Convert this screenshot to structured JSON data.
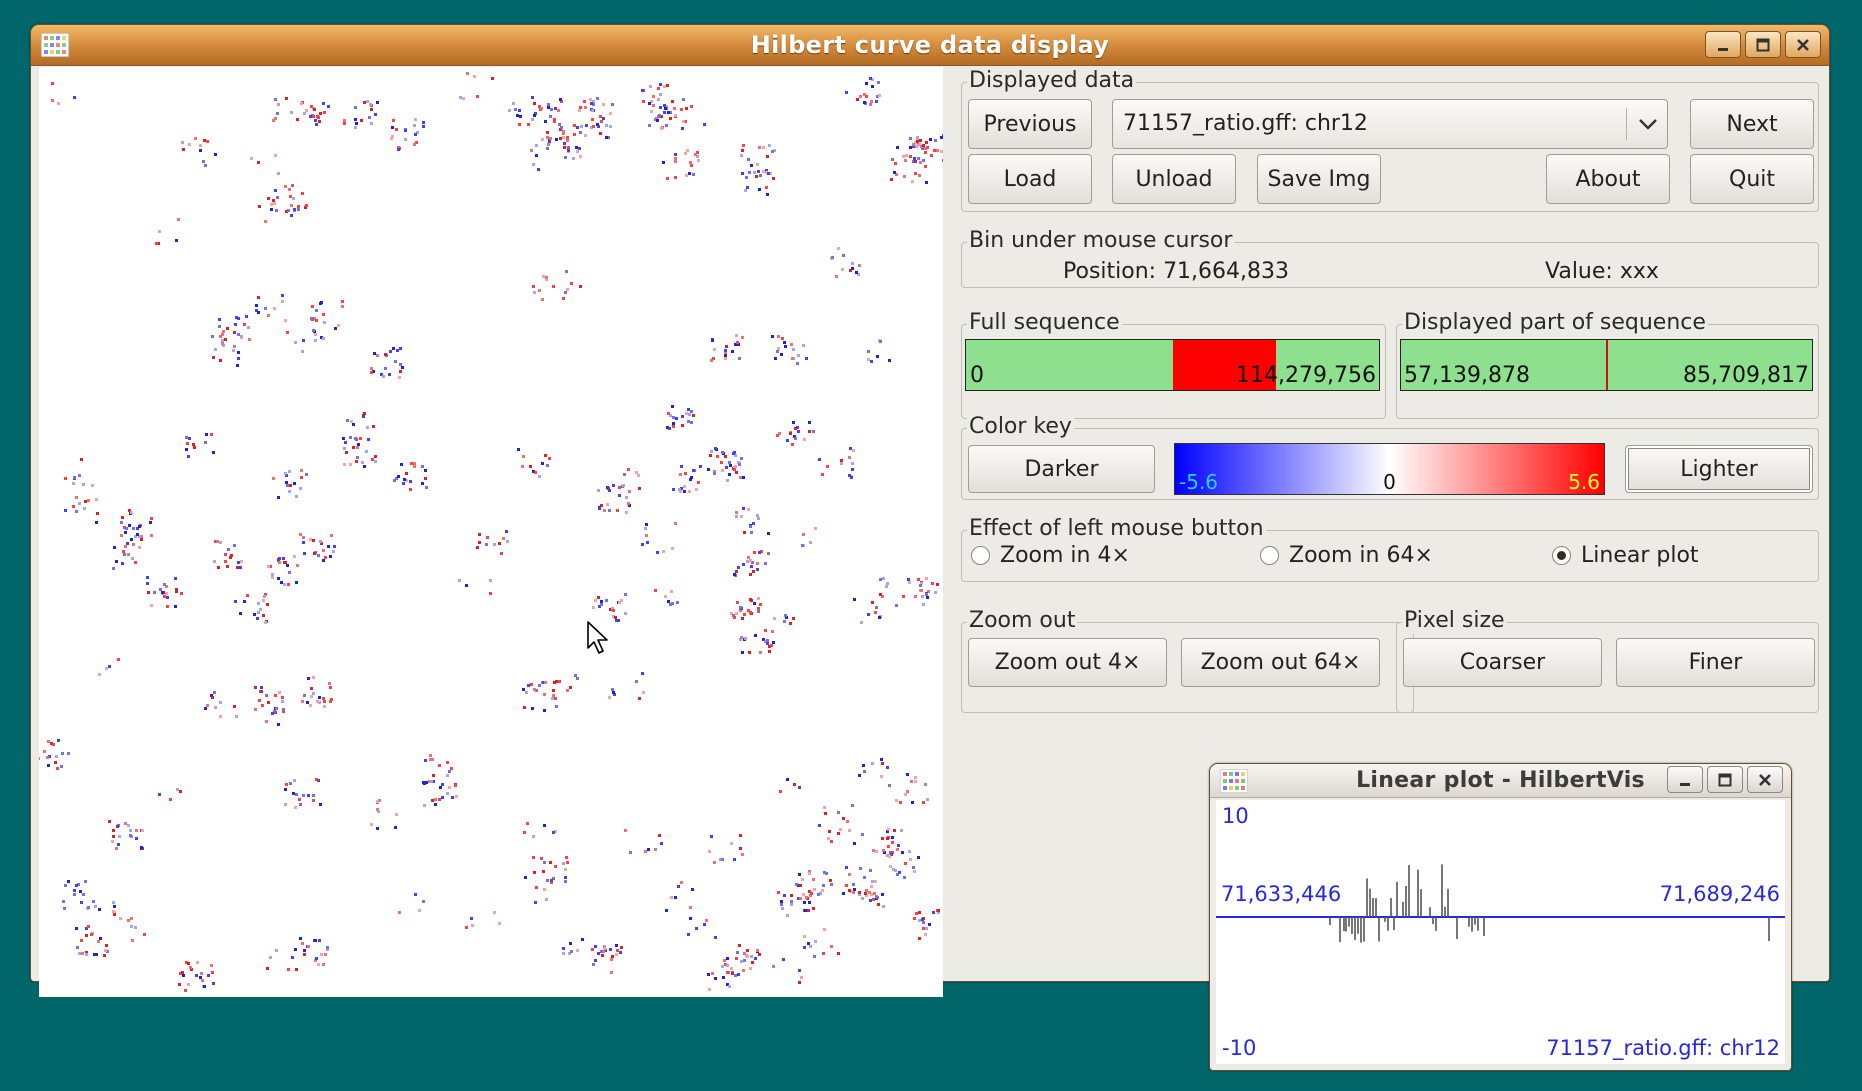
{
  "main_window": {
    "title": "Hilbert curve data display",
    "displayed_data": {
      "label": "Displayed data",
      "previous": "Previous",
      "dataset": "71157_ratio.gff: chr12",
      "next": "Next",
      "load": "Load",
      "unload": "Unload",
      "save_img": "Save Img",
      "about": "About",
      "quit": "Quit"
    },
    "bin_cursor": {
      "label": "Bin under mouse cursor",
      "position": "Position: 71,664,833",
      "value": "Value: xxx"
    },
    "full_sequence": {
      "label": "Full sequence",
      "start": "0",
      "end": "114,279,756",
      "highlight_start_fraction": 0.5,
      "highlight_end_fraction": 0.75
    },
    "displayed_part": {
      "label": "Displayed part of sequence",
      "start": "57,139,878",
      "end": "85,709,817",
      "marker_fraction": 0.5
    },
    "color_key": {
      "label": "Color key",
      "darker": "Darker",
      "lighter": "Lighter",
      "min": "-5.6",
      "mid": "0",
      "max": "5.6",
      "min_color": "#0000ff",
      "max_color": "#ff0000"
    },
    "left_mouse": {
      "label": "Effect of left mouse button",
      "options": [
        "Zoom in 4×",
        "Zoom in 64×",
        "Linear plot"
      ],
      "selected": "Linear plot"
    },
    "zoom_out": {
      "label": "Zoom out",
      "out4": "Zoom out 4×",
      "out64": "Zoom out 64×"
    },
    "pixel_size": {
      "label": "Pixel size",
      "coarser": "Coarser",
      "finer": "Finer"
    }
  },
  "plot_window": {
    "title": "Linear plot - HilbertVis",
    "ymax": "10",
    "ymin": "-10",
    "x_start": "71,633,446",
    "x_end": "71,689,246",
    "dataset": "71157_ratio.gff: chr12"
  },
  "icons": [
    "grid-app-icon",
    "minimize-icon",
    "maximize-icon",
    "close-icon",
    "dropdown-arrow-icon",
    "mouse-cursor-icon"
  ],
  "colors": {
    "desktop": "#00666a",
    "titlebar": "#d2883a",
    "bar_fill": "#8ee08e",
    "highlight": "#ff0000",
    "plot_axis": "#2626e8"
  }
}
